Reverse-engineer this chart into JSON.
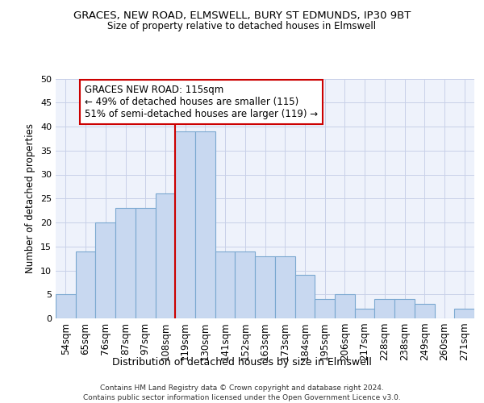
{
  "title": "GRACES, NEW ROAD, ELMSWELL, BURY ST EDMUNDS, IP30 9BT",
  "subtitle": "Size of property relative to detached houses in Elmswell",
  "xlabel": "Distribution of detached houses by size in Elmswell",
  "ylabel": "Number of detached properties",
  "bin_labels": [
    "54sqm",
    "65sqm",
    "76sqm",
    "87sqm",
    "97sqm",
    "108sqm",
    "119sqm",
    "130sqm",
    "141sqm",
    "152sqm",
    "163sqm",
    "173sqm",
    "184sqm",
    "195sqm",
    "206sqm",
    "217sqm",
    "228sqm",
    "238sqm",
    "249sqm",
    "260sqm",
    "271sqm"
  ],
  "bar_heights": [
    5,
    14,
    20,
    23,
    23,
    26,
    39,
    39,
    14,
    14,
    13,
    13,
    9,
    4,
    5,
    2,
    4,
    4,
    3,
    0,
    2
  ],
  "bar_color": "#c8d8f0",
  "bar_edge_color": "#7aa8d0",
  "vline_color": "#cc0000",
  "annotation_text": "GRACES NEW ROAD: 115sqm\n← 49% of detached houses are smaller (115)\n51% of semi-detached houses are larger (119) →",
  "annotation_box_color": "#ffffff",
  "annotation_box_edge_color": "#cc0000",
  "ylim": [
    0,
    50
  ],
  "yticks": [
    0,
    5,
    10,
    15,
    20,
    25,
    30,
    35,
    40,
    45,
    50
  ],
  "footer_text": "Contains HM Land Registry data © Crown copyright and database right 2024.\nContains public sector information licensed under the Open Government Licence v3.0.",
  "bg_color": "#eef2fb",
  "grid_color": "#c8d0e8",
  "title_fontsize": 9.5,
  "subtitle_fontsize": 8.5,
  "xlabel_fontsize": 9.0,
  "ylabel_fontsize": 8.5,
  "tick_fontsize": 8.0,
  "xtick_fontsize": 8.5,
  "annot_fontsize": 8.5,
  "footer_fontsize": 6.5
}
